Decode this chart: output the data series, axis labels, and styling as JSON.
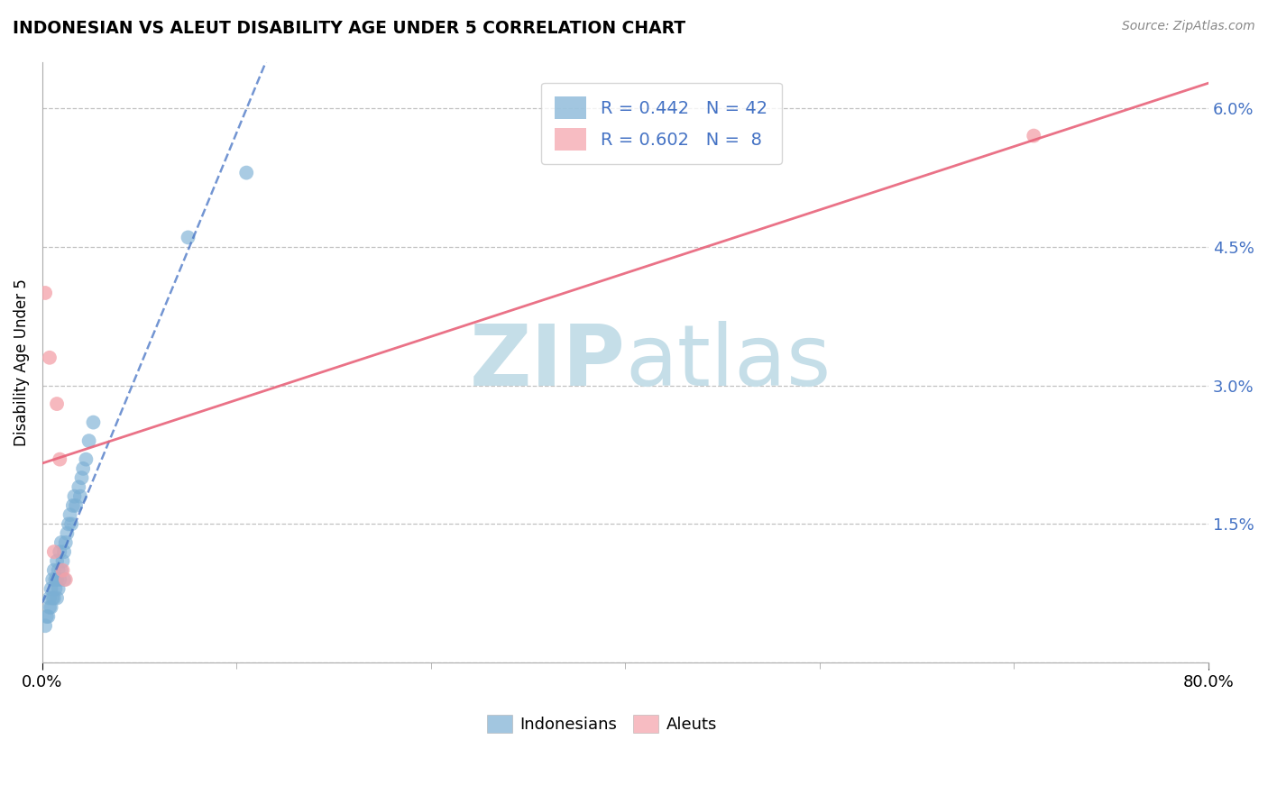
{
  "title": "INDONESIAN VS ALEUT DISABILITY AGE UNDER 5 CORRELATION CHART",
  "source": "Source: ZipAtlas.com",
  "ylabel": "Disability Age Under 5",
  "xlim": [
    0.0,
    0.8
  ],
  "ylim": [
    0.0,
    0.065
  ],
  "ytick_values": [
    0.0,
    0.015,
    0.03,
    0.045,
    0.06
  ],
  "ytick_labels": [
    "",
    "1.5%",
    "3.0%",
    "4.5%",
    "6.0%"
  ],
  "xtick_values": [
    0.0,
    0.8
  ],
  "xtick_labels": [
    "0.0%",
    "80.0%"
  ],
  "r_indonesian": 0.442,
  "n_indonesian": 42,
  "r_aleut": 0.602,
  "n_aleut": 8,
  "scatter_indonesian_x": [
    0.002,
    0.003,
    0.004,
    0.005,
    0.005,
    0.006,
    0.006,
    0.007,
    0.007,
    0.008,
    0.008,
    0.009,
    0.009,
    0.01,
    0.01,
    0.01,
    0.011,
    0.011,
    0.012,
    0.012,
    0.013,
    0.013,
    0.014,
    0.015,
    0.015,
    0.016,
    0.017,
    0.018,
    0.019,
    0.02,
    0.021,
    0.022,
    0.023,
    0.025,
    0.026,
    0.027,
    0.028,
    0.03,
    0.032,
    0.035,
    0.1,
    0.14
  ],
  "scatter_indonesian_y": [
    0.004,
    0.005,
    0.005,
    0.006,
    0.007,
    0.006,
    0.008,
    0.007,
    0.009,
    0.007,
    0.01,
    0.008,
    0.009,
    0.007,
    0.009,
    0.011,
    0.008,
    0.01,
    0.009,
    0.012,
    0.01,
    0.013,
    0.011,
    0.009,
    0.012,
    0.013,
    0.014,
    0.015,
    0.016,
    0.015,
    0.017,
    0.018,
    0.017,
    0.019,
    0.018,
    0.02,
    0.021,
    0.022,
    0.024,
    0.026,
    0.046,
    0.053
  ],
  "scatter_aleut_x": [
    0.002,
    0.005,
    0.008,
    0.01,
    0.012,
    0.014,
    0.016,
    0.68
  ],
  "scatter_aleut_y": [
    0.04,
    0.033,
    0.012,
    0.028,
    0.022,
    0.01,
    0.009,
    0.057
  ],
  "color_indonesian": "#7BAFD4",
  "color_aleut": "#F4A0A8",
  "trend_indonesian_color": "#4472C4",
  "trend_aleut_color": "#E8637A",
  "background_color": "#FFFFFF",
  "grid_color": "#BBBBBB",
  "watermark_color": "#C5DEE8"
}
